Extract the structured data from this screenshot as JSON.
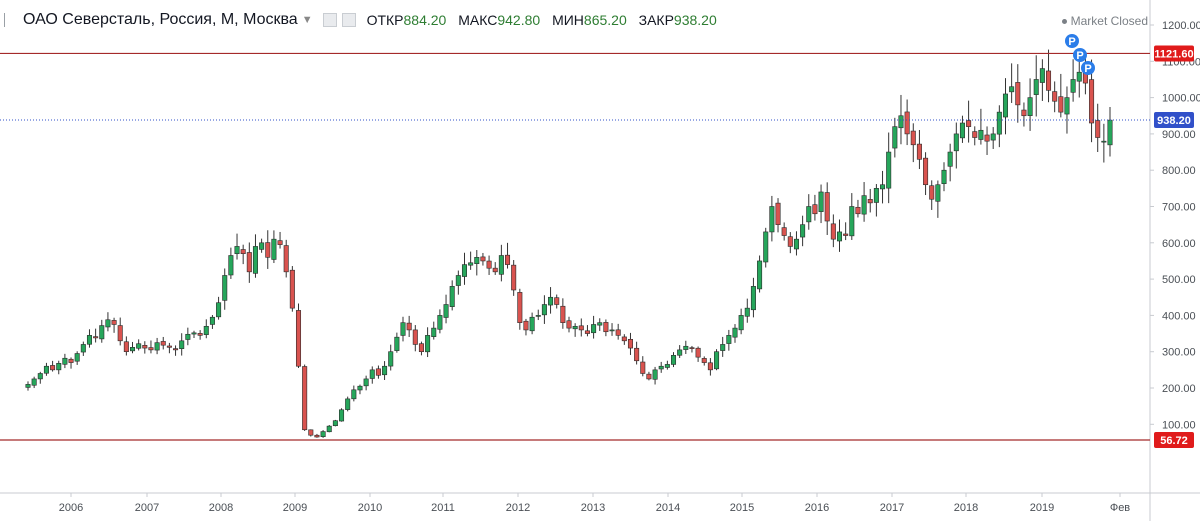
{
  "header": {
    "symbol": "ОАО Северсталь, Россия, М, Москва",
    "open_label": "ОТКР",
    "open_value": "884.20",
    "high_label": "МАКС",
    "high_value": "942.80",
    "low_label": "МИН",
    "low_value": "865.20",
    "close_label": "ЗАКР",
    "close_value": "938.20",
    "market_status": "Market Closed"
  },
  "colors": {
    "up": "#26a65b",
    "down": "#d9534f",
    "wick": "#333333",
    "level_line": "#a52a2a",
    "price_line": "#3150c9",
    "badge_blue": "#2b7de9"
  },
  "chart_data": {
    "type": "candlestick",
    "title": "",
    "xlabel": "",
    "ylabel": "",
    "x_ticks": [
      "2006",
      "2007",
      "2008",
      "2009",
      "2010",
      "2011",
      "2012",
      "2013",
      "2014",
      "2015",
      "2016",
      "2017",
      "2018",
      "2019",
      "Фев"
    ],
    "y_ticks": [
      1200,
      1100,
      1000,
      900,
      800,
      700,
      600,
      500,
      400,
      300,
      200,
      100
    ],
    "y_tick_labels": [
      "1200.00",
      "1100.00",
      "1000.00",
      "900.00",
      "800.00",
      "700.00",
      "600.00",
      "500.00",
      "400.00",
      "300.00",
      "200.00",
      "100.00"
    ],
    "ylim": [
      40,
      1250
    ],
    "grid": false,
    "horizontal_levels": [
      {
        "value": 1121.6,
        "label": "1121.60",
        "style": "solid"
      },
      {
        "value": 56.72,
        "label": "56.72",
        "style": "solid"
      }
    ],
    "current_price": {
      "value": 938.2,
      "label": "938.20",
      "style": "dotted"
    },
    "markers": [
      {
        "label": "P",
        "count": 3,
        "near_date": "2019"
      }
    ],
    "series": [
      {
        "interval": "monthly",
        "start": "2005-06",
        "close": [
          210,
          225,
          240,
          260,
          250,
          268,
          282,
          270,
          295,
          320,
          345,
          338,
          372,
          388,
          375,
          330,
          300,
          312,
          322,
          310,
          305,
          325,
          318,
          312,
          305,
          330,
          348,
          352,
          345,
          370,
          395,
          435,
          510,
          565,
          590,
          570,
          520,
          590,
          600,
          560,
          610,
          595,
          520,
          420,
          260,
          85,
          70,
          65,
          80,
          95,
          110,
          140,
          170,
          195,
          205,
          225,
          250,
          235,
          260,
          300,
          340,
          380,
          360,
          320,
          300,
          345,
          365,
          400,
          430,
          480,
          510,
          540,
          545,
          560,
          550,
          530,
          520,
          565,
          540,
          470,
          380,
          360,
          395,
          400,
          430,
          450,
          430,
          380,
          365,
          370,
          360,
          350,
          375,
          380,
          355,
          360,
          345,
          330,
          310,
          275,
          240,
          225,
          250,
          260,
          265,
          290,
          305,
          315,
          310,
          285,
          270,
          250,
          300,
          320,
          345,
          365,
          400,
          420,
          480,
          550,
          630,
          700,
          650,
          620,
          590,
          610,
          650,
          700,
          680,
          740,
          660,
          610,
          630,
          620,
          700,
          680,
          730,
          710,
          750,
          760,
          850,
          920,
          950,
          900,
          870,
          830,
          760,
          720,
          760,
          800,
          850,
          900,
          930,
          920,
          890,
          910,
          880,
          900,
          960,
          1010,
          1030,
          980,
          950,
          1000,
          1050,
          1080,
          1020,
          990,
          960,
          1000,
          1050,
          1070,
          1040,
          930,
          890,
          880,
          938
        ]
      }
    ]
  }
}
